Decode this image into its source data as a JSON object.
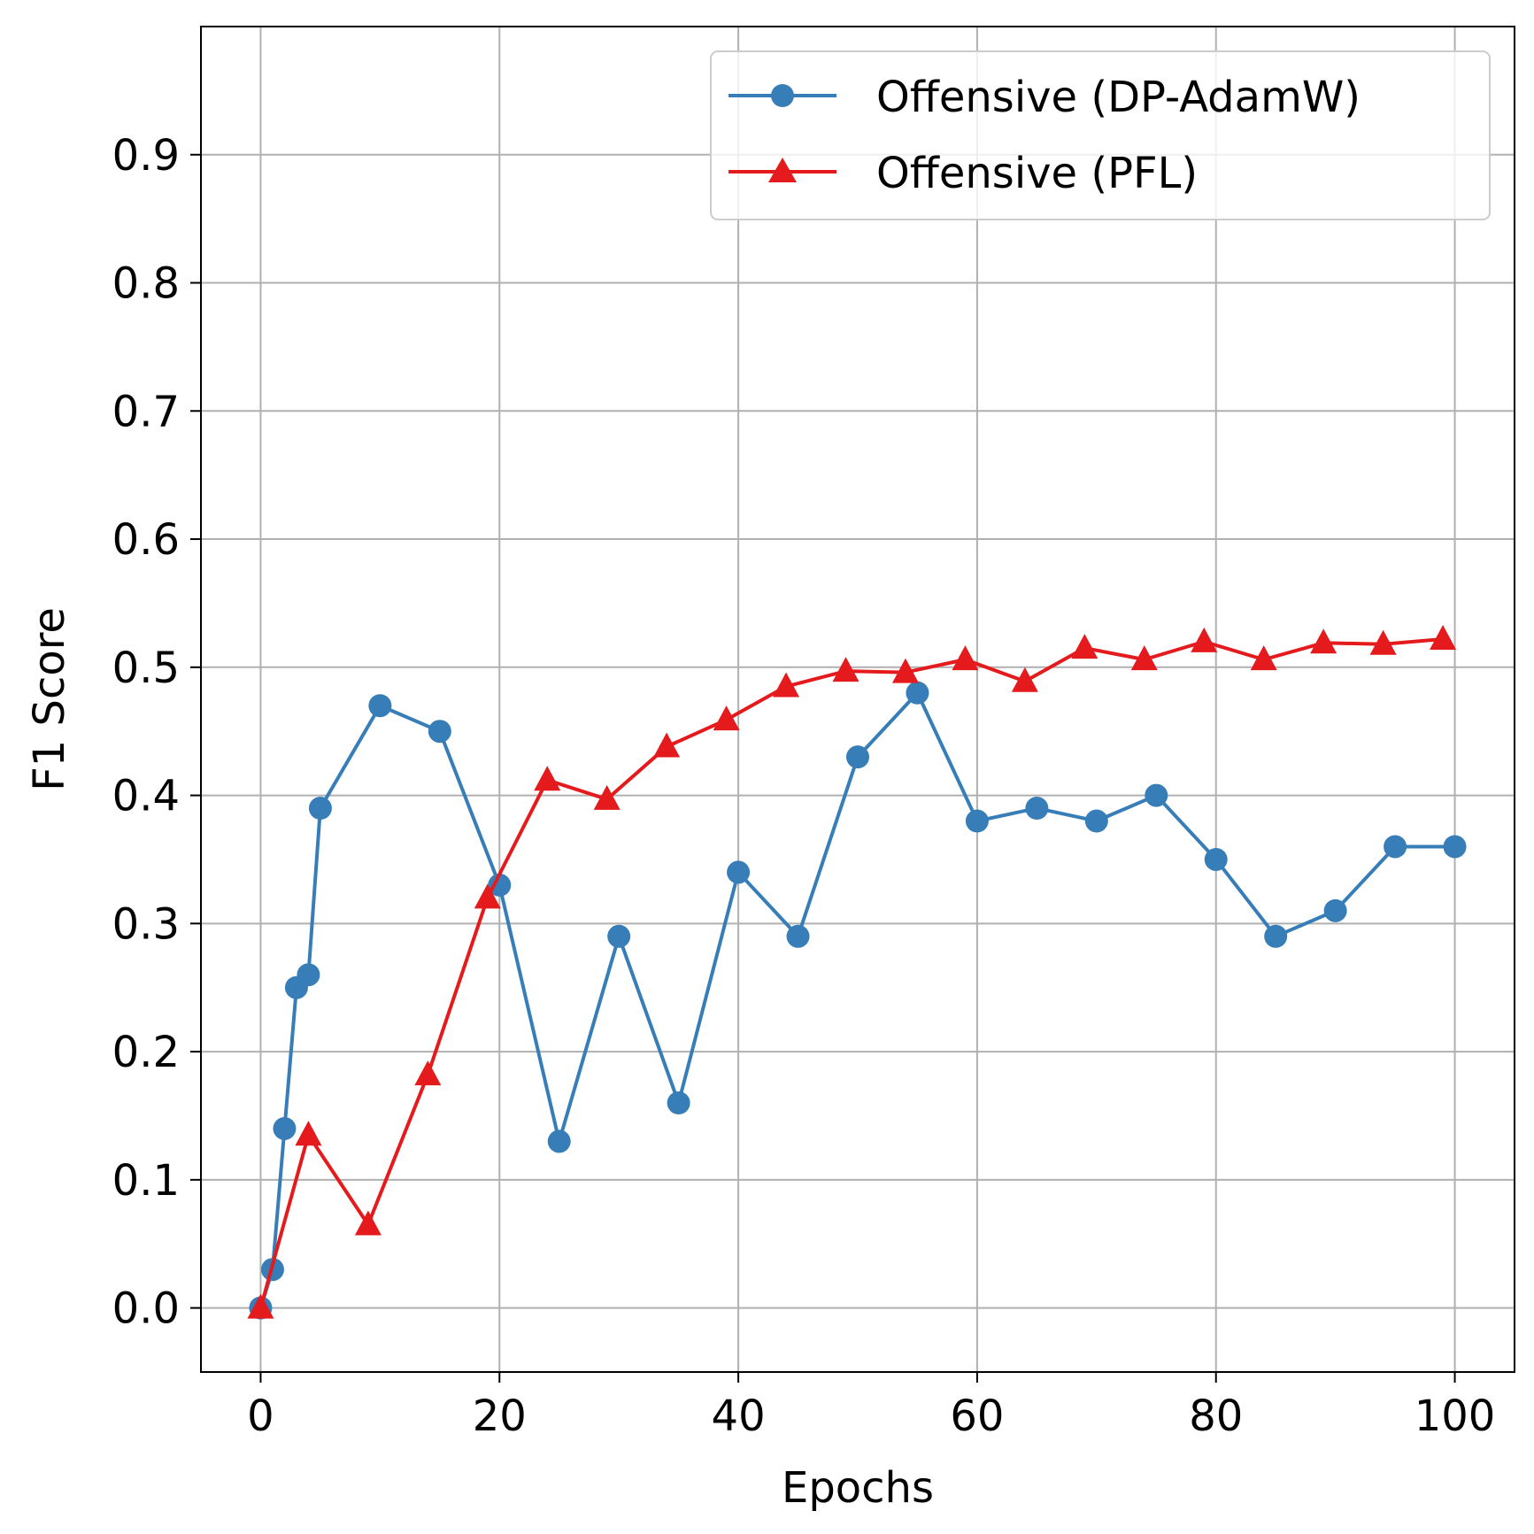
{
  "chart_data": {
    "type": "line",
    "title": "",
    "xlabel": "Epochs",
    "ylabel": "F1 Score",
    "xlim": [
      -5,
      105
    ],
    "ylim": [
      -0.05,
      1.0
    ],
    "xticks": [
      0,
      20,
      40,
      60,
      80,
      100
    ],
    "xtick_labels": [
      "0",
      "20",
      "40",
      "60",
      "80",
      "100"
    ],
    "yticks": [
      0.0,
      0.1,
      0.2,
      0.3,
      0.4,
      0.5,
      0.6,
      0.7,
      0.8,
      0.9
    ],
    "ytick_labels": [
      "0.0",
      "0.1",
      "0.2",
      "0.3",
      "0.4",
      "0.5",
      "0.6",
      "0.7",
      "0.8",
      "0.9"
    ],
    "grid": true,
    "legend_position": "top-right",
    "series": [
      {
        "name": "Offensive (DP-AdamW)",
        "color": "#377eb8",
        "marker": "circle",
        "x": [
          0,
          1,
          2,
          3,
          4,
          5,
          10,
          15,
          20,
          25,
          30,
          35,
          40,
          45,
          50,
          55,
          60,
          65,
          70,
          75,
          80,
          85,
          90,
          95,
          100
        ],
        "y": [
          0.0,
          0.03,
          0.14,
          0.25,
          0.26,
          0.39,
          0.47,
          0.45,
          0.33,
          0.13,
          0.29,
          0.16,
          0.34,
          0.29,
          0.43,
          0.48,
          0.38,
          0.39,
          0.38,
          0.4,
          0.35,
          0.29,
          0.31,
          0.36,
          0.36
        ]
      },
      {
        "name": "Offensive (PFL)",
        "color": "#e41a1c",
        "marker": "triangle",
        "x": [
          0,
          4,
          9,
          14,
          19,
          24,
          29,
          34,
          39,
          44,
          49,
          54,
          59,
          64,
          69,
          74,
          79,
          84,
          89,
          94,
          99
        ],
        "y": [
          0.0,
          0.135,
          0.065,
          0.182,
          0.32,
          0.412,
          0.397,
          0.438,
          0.459,
          0.485,
          0.497,
          0.496,
          0.506,
          0.489,
          0.515,
          0.506,
          0.52,
          0.506,
          0.519,
          0.518,
          0.522
        ]
      }
    ]
  }
}
